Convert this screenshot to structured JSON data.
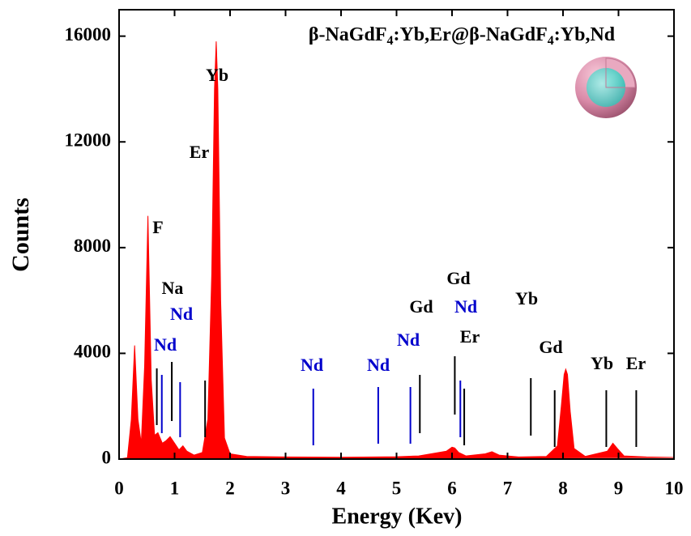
{
  "chart_data": {
    "type": "area",
    "title": "β-NaGdF4:Yb,Er@β-NaGdF4:Yb,Nd",
    "x_label": "Energy (Kev)",
    "y_label": "Counts",
    "color": "#ff0000",
    "x": [
      0,
      0.15,
      0.22,
      0.28,
      0.34,
      0.4,
      0.46,
      0.52,
      0.58,
      0.64,
      0.7,
      0.78,
      0.85,
      0.92,
      1.0,
      1.08,
      1.15,
      1.22,
      1.35,
      1.5,
      1.6,
      1.67,
      1.72,
      1.75,
      1.78,
      1.83,
      1.9,
      2.0,
      2.3,
      3,
      4,
      5,
      5.4,
      5.9,
      6.0,
      6.05,
      6.12,
      6.25,
      6.6,
      6.72,
      6.85,
      7.2,
      7.7,
      7.9,
      7.97,
      8.02,
      8.05,
      8.08,
      8.13,
      8.2,
      8.4,
      8.8,
      8.9,
      8.98,
      9.1,
      9.5,
      10
    ],
    "values": [
      0,
      50,
      1500,
      4300,
      1500,
      600,
      3500,
      9200,
      3000,
      900,
      1000,
      600,
      700,
      850,
      600,
      350,
      500,
      300,
      150,
      250,
      1500,
      7000,
      14000,
      15800,
      14000,
      6000,
      800,
      200,
      100,
      80,
      70,
      90,
      120,
      300,
      450,
      420,
      250,
      120,
      200,
      280,
      150,
      80,
      100,
      500,
      2000,
      3200,
      3400,
      3200,
      1800,
      400,
      100,
      300,
      600,
      400,
      120,
      80,
      60
    ],
    "xlim": [
      0,
      10
    ],
    "ylim": [
      0,
      17000
    ],
    "xticks": [
      0,
      1,
      2,
      3,
      4,
      5,
      6,
      7,
      8,
      9,
      10
    ],
    "yticks": [
      0,
      4000,
      8000,
      12000,
      16000
    ],
    "markers": [
      {
        "x": 0.68,
        "color": "#000000"
      },
      {
        "x": 0.77,
        "color": "#0000cc"
      },
      {
        "x": 0.95,
        "color": "#000000"
      },
      {
        "x": 1.1,
        "color": "#0000cc"
      },
      {
        "x": 1.55,
        "color": "#000000"
      },
      {
        "x": 3.5,
        "color": "#0000cc"
      },
      {
        "x": 4.67,
        "color": "#0000cc"
      },
      {
        "x": 5.25,
        "color": "#0000cc"
      },
      {
        "x": 5.42,
        "color": "#000000"
      },
      {
        "x": 6.05,
        "color": "#000000"
      },
      {
        "x": 6.15,
        "color": "#0000cc"
      },
      {
        "x": 6.22,
        "color": "#000000"
      },
      {
        "x": 7.42,
        "color": "#000000"
      },
      {
        "x": 7.85,
        "color": "#000000"
      },
      {
        "x": 8.78,
        "color": "#000000"
      },
      {
        "x": 9.32,
        "color": "#000000"
      }
    ],
    "annotations": [
      {
        "text": "Yb",
        "color": "#000000"
      },
      {
        "text": "Er",
        "color": "#000000"
      },
      {
        "text": "F",
        "color": "#000000"
      },
      {
        "text": "Na",
        "color": "#000000"
      },
      {
        "text": "Nd",
        "color": "#0000cc"
      },
      {
        "text": "Nd",
        "color": "#0000cc"
      },
      {
        "text": "Nd",
        "color": "#0000cc"
      },
      {
        "text": "Nd",
        "color": "#0000cc"
      },
      {
        "text": "Nd",
        "color": "#0000cc"
      },
      {
        "text": "Gd",
        "color": "#000000"
      },
      {
        "text": "Gd",
        "color": "#000000"
      },
      {
        "text": "Nd",
        "color": "#0000cc"
      },
      {
        "text": "Er",
        "color": "#000000"
      },
      {
        "text": "Yb",
        "color": "#000000"
      },
      {
        "text": "Gd",
        "color": "#000000"
      },
      {
        "text": "Yb",
        "color": "#000000"
      },
      {
        "text": "Er",
        "color": "#000000"
      }
    ]
  }
}
